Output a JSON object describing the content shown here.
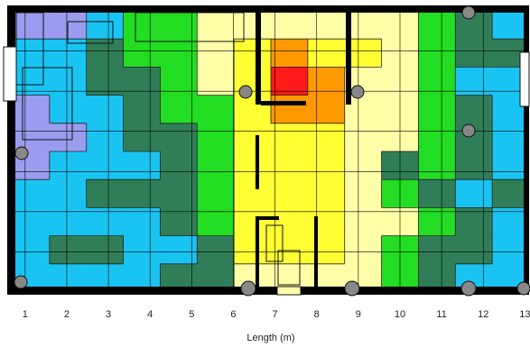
{
  "chart_data": {
    "type": "heatmap",
    "title": "",
    "xlabel": "Length (m)",
    "ylabel": "",
    "x_ticks": [
      1,
      2,
      3,
      4,
      5,
      6,
      7,
      8,
      9,
      10,
      11,
      12,
      13
    ],
    "xlim": [
      0.7,
      13.1
    ],
    "ylim": [
      0,
      7
    ],
    "grid": true,
    "legend": "none",
    "levels": [
      {
        "level": 0,
        "color": "#9b9bef"
      },
      {
        "level": 1,
        "color": "#19c4f2"
      },
      {
        "level": 2,
        "color": "#2f7e57"
      },
      {
        "level": 3,
        "color": "#22dd22"
      },
      {
        "level": 4,
        "color": "#ffffa8"
      },
      {
        "level": 5,
        "color": "#ffff33"
      },
      {
        "level": 6,
        "color": "#ff9900"
      },
      {
        "level": 7,
        "color": "#ff1a1a"
      }
    ],
    "colors": {
      "walls": "#000000",
      "contour_lines": "#222222",
      "grid_lines": "#000000"
    },
    "grid_values": [
      [
        0,
        0,
        1,
        3,
        3,
        4,
        4,
        4,
        4,
        4,
        4,
        3,
        2,
        1
      ],
      [
        1,
        1,
        2,
        3,
        3,
        4,
        5,
        6,
        5,
        5,
        4,
        3,
        2,
        2
      ],
      [
        1,
        1,
        2,
        2,
        3,
        4,
        5,
        7,
        6,
        4,
        4,
        3,
        1,
        1
      ],
      [
        0,
        1,
        1,
        2,
        3,
        3,
        5,
        6,
        6,
        4,
        4,
        3,
        2,
        1
      ],
      [
        0,
        0,
        1,
        2,
        2,
        3,
        5,
        5,
        5,
        4,
        4,
        3,
        2,
        1
      ],
      [
        0,
        1,
        1,
        1,
        2,
        3,
        5,
        5,
        5,
        4,
        2,
        3,
        2,
        1
      ],
      [
        1,
        1,
        2,
        2,
        2,
        3,
        5,
        5,
        5,
        4,
        3,
        2,
        1,
        2
      ],
      [
        1,
        1,
        1,
        1,
        2,
        3,
        5,
        5,
        5,
        4,
        4,
        3,
        2,
        1
      ],
      [
        1,
        2,
        2,
        1,
        1,
        2,
        5,
        5,
        5,
        4,
        3,
        2,
        2,
        1
      ],
      [
        1,
        1,
        1,
        1,
        2,
        2,
        4,
        4,
        4,
        4,
        3,
        2,
        1,
        1
      ]
    ]
  }
}
